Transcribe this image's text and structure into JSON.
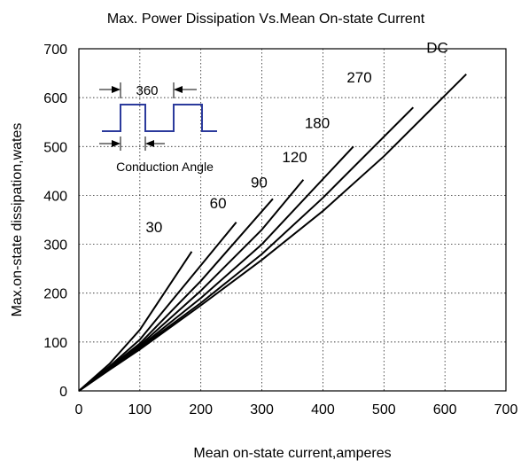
{
  "chart_data": {
    "type": "line",
    "title": "Max. Power Dissipation Vs.Mean On-state Current",
    "xlabel": "Mean on-state current,amperes",
    "ylabel": "Max.on-state dissipation,wates",
    "xlim": [
      0,
      700
    ],
    "ylim": [
      0,
      700
    ],
    "xticks": [
      0,
      100,
      200,
      300,
      400,
      500,
      600,
      700
    ],
    "yticks": [
      0,
      100,
      200,
      300,
      400,
      500,
      600,
      700
    ],
    "grid": true,
    "series": [
      {
        "name": "30",
        "x": [
          0,
          50,
          100,
          185
        ],
        "y": [
          0,
          55,
          125,
          285
        ]
      },
      {
        "name": "60",
        "x": [
          0,
          50,
          100,
          258
        ],
        "y": [
          0,
          50,
          105,
          345
        ]
      },
      {
        "name": "90",
        "x": [
          0,
          50,
          100,
          200,
          318
        ],
        "y": [
          0,
          48,
          97,
          225,
          393
        ]
      },
      {
        "name": "120",
        "x": [
          0,
          50,
          100,
          200,
          300,
          368
        ],
        "y": [
          0,
          46,
          93,
          205,
          330,
          432
        ]
      },
      {
        "name": "180",
        "x": [
          0,
          50,
          100,
          200,
          300,
          450
        ],
        "y": [
          0,
          45,
          90,
          190,
          300,
          500
        ]
      },
      {
        "name": "270",
        "x": [
          0,
          50,
          100,
          200,
          300,
          400,
          548
        ],
        "y": [
          0,
          44,
          88,
          180,
          280,
          395,
          580
        ]
      },
      {
        "name": "DC",
        "x": [
          0,
          50,
          100,
          200,
          300,
          400,
          500,
          635
        ],
        "y": [
          0,
          43,
          85,
          175,
          268,
          368,
          480,
          648
        ]
      }
    ],
    "inset": {
      "period_label": "360",
      "angle_label": "Conduction Angle",
      "waveform_color": "#2b3a9c"
    }
  }
}
